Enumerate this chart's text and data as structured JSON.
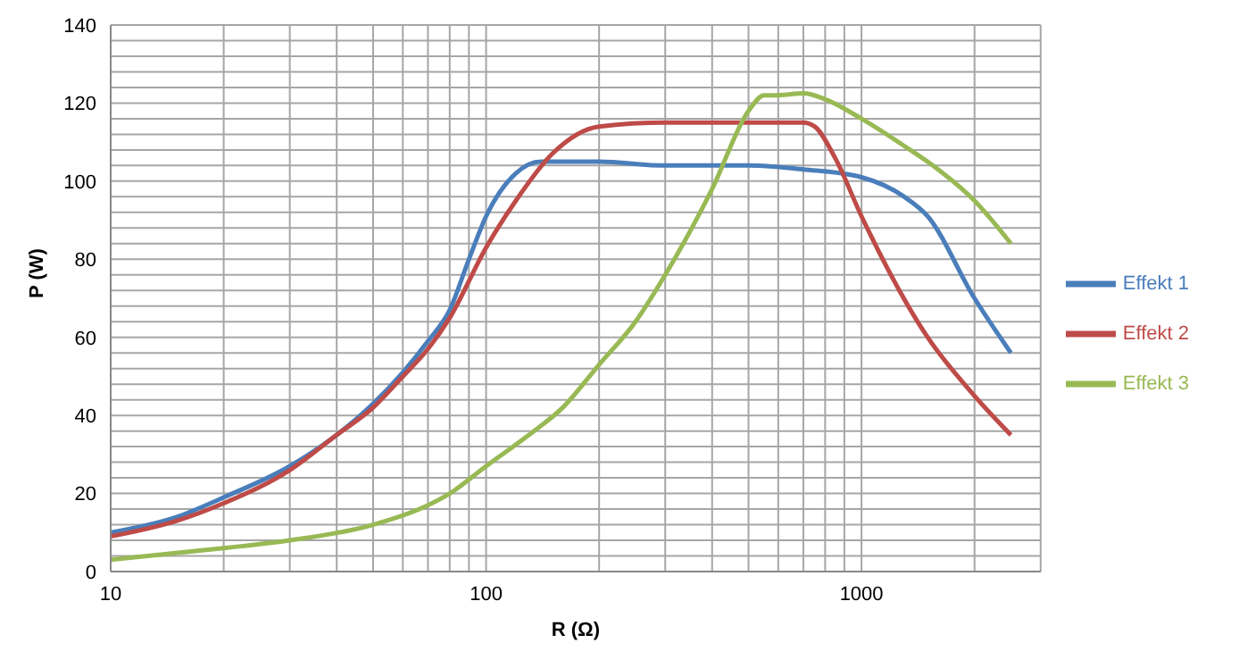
{
  "chart_data": {
    "type": "line",
    "xlabel": "R (Ω)",
    "ylabel": "P (W)",
    "log": "x",
    "xlim": [
      10,
      3000
    ],
    "xticks": [
      10,
      {
        "value": 20,
        "label": null
      },
      {
        "value": 30,
        "label": null
      },
      {
        "value": 40,
        "label": null
      },
      {
        "value": 50,
        "label": null
      },
      {
        "value": 60,
        "label": null
      },
      {
        "value": 70,
        "label": null
      },
      {
        "value": 80,
        "label": null
      },
      {
        "value": 90,
        "label": null
      },
      100,
      {
        "value": 200,
        "label": null
      },
      {
        "value": 300,
        "label": null
      },
      {
        "value": 400,
        "label": null
      },
      {
        "value": 500,
        "label": null
      },
      {
        "value": 600,
        "label": null
      },
      {
        "value": 700,
        "label": null
      },
      {
        "value": 800,
        "label": null
      },
      {
        "value": 900,
        "label": null
      },
      1000,
      {
        "value": 2000,
        "label": null
      },
      {
        "value": 3000,
        "label": null
      }
    ],
    "ylim": [
      0,
      140
    ],
    "yticks": [
      0,
      {
        "value": 4,
        "label": null
      },
      {
        "value": 8,
        "label": null
      },
      {
        "value": 12,
        "label": null
      },
      {
        "value": 16,
        "label": null
      },
      20,
      {
        "value": 24,
        "label": null
      },
      {
        "value": 28,
        "label": null
      },
      {
        "value": 32,
        "label": null
      },
      {
        "value": 36,
        "label": null
      },
      40,
      {
        "value": 44,
        "label": null
      },
      {
        "value": 48,
        "label": null
      },
      {
        "value": 52,
        "label": null
      },
      {
        "value": 56,
        "label": null
      },
      60,
      {
        "value": 64,
        "label": null
      },
      {
        "value": 68,
        "label": null
      },
      {
        "value": 72,
        "label": null
      },
      {
        "value": 76,
        "label": null
      },
      80,
      {
        "value": 84,
        "label": null
      },
      {
        "value": 88,
        "label": null
      },
      {
        "value": 92,
        "label": null
      },
      {
        "value": 96,
        "label": null
      },
      100,
      {
        "value": 104,
        "label": null
      },
      {
        "value": 108,
        "label": null
      },
      {
        "value": 112,
        "label": null
      },
      {
        "value": 116,
        "label": null
      },
      120,
      {
        "value": 124,
        "label": null
      },
      {
        "value": 128,
        "label": null
      },
      {
        "value": 132,
        "label": null
      },
      {
        "value": 136,
        "label": null
      },
      140
    ],
    "grid": true,
    "legend": "right",
    "marker": "none",
    "line_style": "solid",
    "series": [
      {
        "name": "Effekt 1",
        "color": "#4a7ebb",
        "x": [
          10,
          15,
          20,
          30,
          40,
          50,
          60,
          70,
          80,
          90,
          100,
          120,
          140,
          200,
          300,
          500,
          700,
          1000,
          1300,
          1500,
          2000,
          2500
        ],
        "values": [
          10,
          14,
          19,
          27,
          35,
          43,
          51,
          59,
          67,
          80,
          91,
          102,
          105,
          105,
          104,
          104,
          103,
          101,
          96,
          91,
          70,
          56
        ]
      },
      {
        "name": "Effekt 2",
        "color": "#be4b48",
        "x": [
          10,
          15,
          20,
          30,
          40,
          50,
          60,
          70,
          80,
          100,
          120,
          150,
          200,
          300,
          500,
          700,
          750,
          850,
          1000,
          1500,
          2000,
          2500
        ],
        "values": [
          9,
          13,
          17.5,
          26,
          35,
          42,
          50,
          57,
          65,
          83,
          95,
          107,
          114,
          115,
          115,
          115,
          114,
          106,
          91,
          60,
          45,
          35
        ]
      },
      {
        "name": "Effekt 3",
        "color": "#98b954",
        "x": [
          10,
          20,
          30,
          50,
          70,
          80,
          100,
          130,
          160,
          200,
          250,
          300,
          400,
          500,
          550,
          600,
          700,
          800,
          1000,
          1300,
          1600,
          2000,
          2500
        ],
        "values": [
          3,
          6,
          8,
          12,
          17,
          20,
          27,
          35,
          42,
          53,
          64,
          76,
          98,
          118,
          122,
          122,
          122.5,
          121,
          116,
          109,
          103,
          95,
          84
        ]
      }
    ]
  }
}
